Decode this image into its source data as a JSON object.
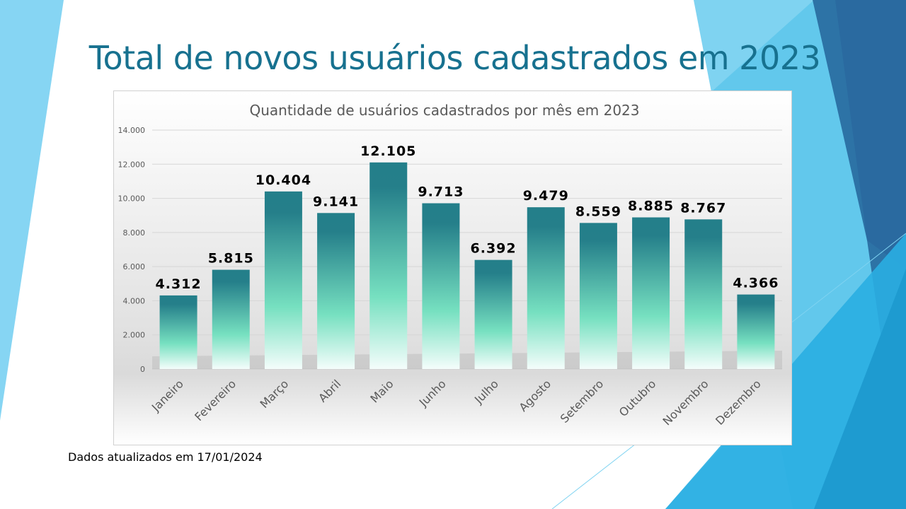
{
  "slide": {
    "title": "Total de novos usuários cadastrados em 2023",
    "footnote": "Dados atualizados em 17/01/2024"
  },
  "colors": {
    "title": "#17718f",
    "bar_top": "#247f8a",
    "bar_mid": "#76e0c0",
    "bar_bottom": "#f4fdfb"
  },
  "chart_data": {
    "type": "bar",
    "title": "Quantidade de usuários cadastrados por mês em 2023",
    "xlabel": "",
    "ylabel": "",
    "ylim": [
      0,
      14000
    ],
    "yticks": [
      0,
      2000,
      4000,
      6000,
      8000,
      10000,
      12000,
      14000
    ],
    "ytick_labels": [
      "0",
      "2.000",
      "4.000",
      "6.000",
      "8.000",
      "10.000",
      "12.000",
      "14.000"
    ],
    "grid": true,
    "categories": [
      "Janeiro",
      "Fevereiro",
      "Março",
      "Abril",
      "Maio",
      "Junho",
      "Julho",
      "Agosto",
      "Setembro",
      "Outubro",
      "Novembro",
      "Dezembro"
    ],
    "values": [
      4312,
      5815,
      10404,
      9141,
      12105,
      9713,
      6392,
      9479,
      8559,
      8885,
      8767,
      4366
    ],
    "data_labels": [
      "4.312",
      "5.815",
      "10.404",
      "9.141",
      "12.105",
      "9.713",
      "6.392",
      "9.479",
      "8.559",
      "8.885",
      "8.767",
      "4.366"
    ]
  }
}
